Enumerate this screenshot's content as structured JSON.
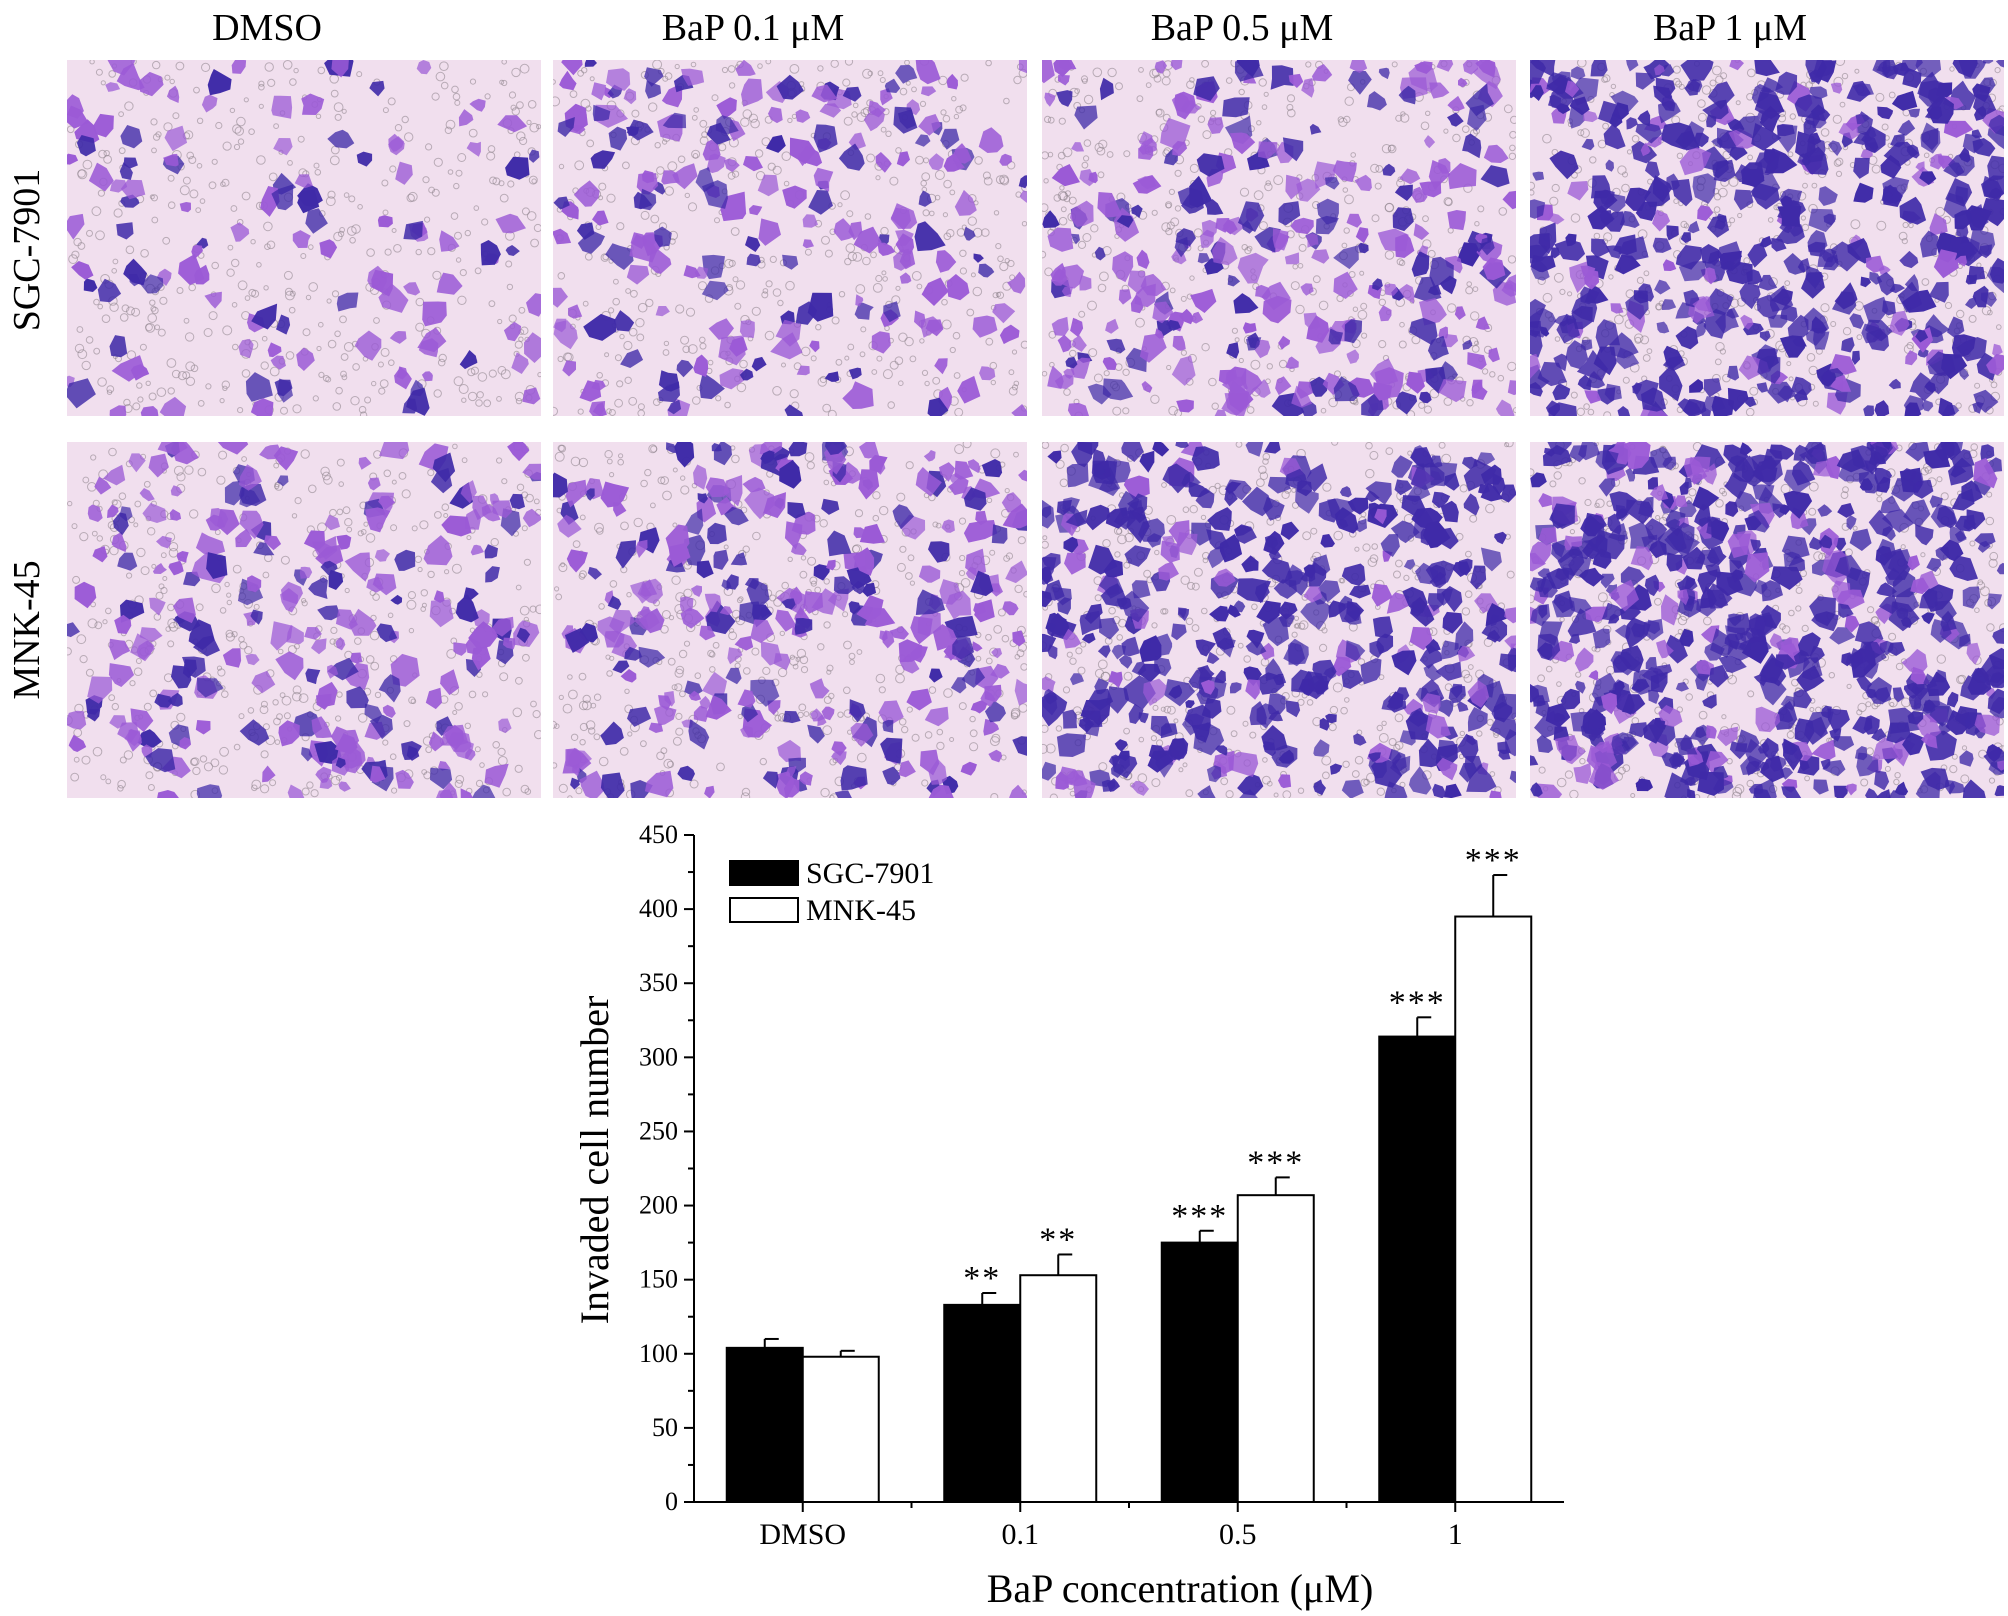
{
  "column_headers": [
    "DMSO",
    "BaP 0.1 μM",
    "BaP 0.5 μM",
    "BaP 1 μM"
  ],
  "row_headers": [
    "SGC-7901",
    "MNK-45"
  ],
  "stain_colors": {
    "background": "#f1dfee",
    "stain_light": "#9b5ad6",
    "stain_dark": "#3f2aa8",
    "pore": "#8a7f88"
  },
  "panel_staining_levels": [
    [
      0.15,
      0.3,
      0.45,
      0.8
    ],
    [
      0.35,
      0.45,
      0.7,
      0.98
    ]
  ],
  "chart_data": {
    "type": "bar",
    "categories": [
      "DMSO",
      "0.1",
      "0.5",
      "1"
    ],
    "series": [
      {
        "name": "SGC-7901",
        "values": [
          104,
          133,
          175,
          314
        ],
        "errors": [
          6,
          8,
          8,
          13
        ],
        "significance": [
          "",
          "**",
          "***",
          "***"
        ],
        "color": "#000000"
      },
      {
        "name": "MNK-45",
        "values": [
          98,
          153,
          207,
          395
        ],
        "errors": [
          4,
          14,
          12,
          28
        ],
        "significance": [
          "",
          "**",
          "***",
          "***"
        ],
        "color": "#ffffff"
      }
    ],
    "xlabel": "BaP concentration (μM)",
    "ylabel": "Invaded cell number",
    "ylim": [
      0,
      450
    ],
    "yticks": [
      0,
      50,
      100,
      150,
      200,
      250,
      300,
      350,
      400,
      450
    ],
    "legend": "top-left",
    "grid": false
  }
}
